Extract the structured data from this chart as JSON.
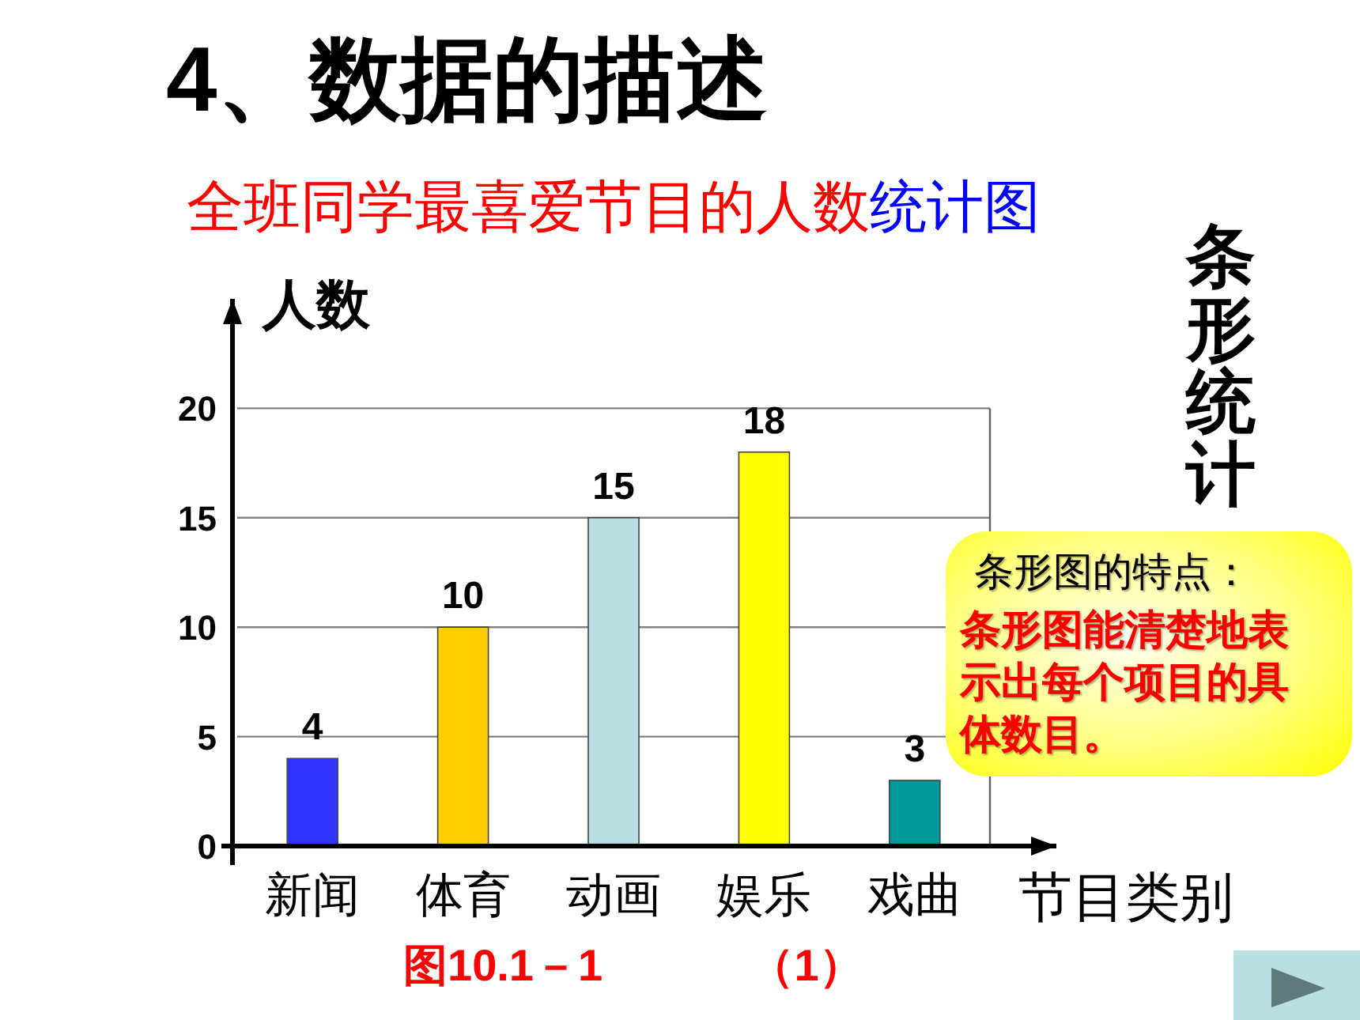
{
  "chart_data": {
    "type": "bar",
    "title": "4、数据的描述",
    "subtitle": "全班同学最喜爱节目的人数统计图",
    "xlabel": "节目类别",
    "ylabel": "人数",
    "categories": [
      "新闻",
      "体育",
      "动画",
      "娱乐",
      "戏曲"
    ],
    "values": [
      4,
      10,
      15,
      18,
      3
    ],
    "colors": [
      "#3333ff",
      "#ffcc00",
      "#b9dfe2",
      "#ffff00",
      "#009999"
    ],
    "ylim": [
      0,
      25
    ],
    "yticks": [
      0,
      5,
      10,
      15,
      20
    ],
    "grid": "y",
    "data_labels": true,
    "annotations": [
      "条形统计",
      "条形图的特点：",
      "条形图能清楚地表示出每个项目的具体数目。",
      "图10.1－1",
      "（1）"
    ]
  }
}
